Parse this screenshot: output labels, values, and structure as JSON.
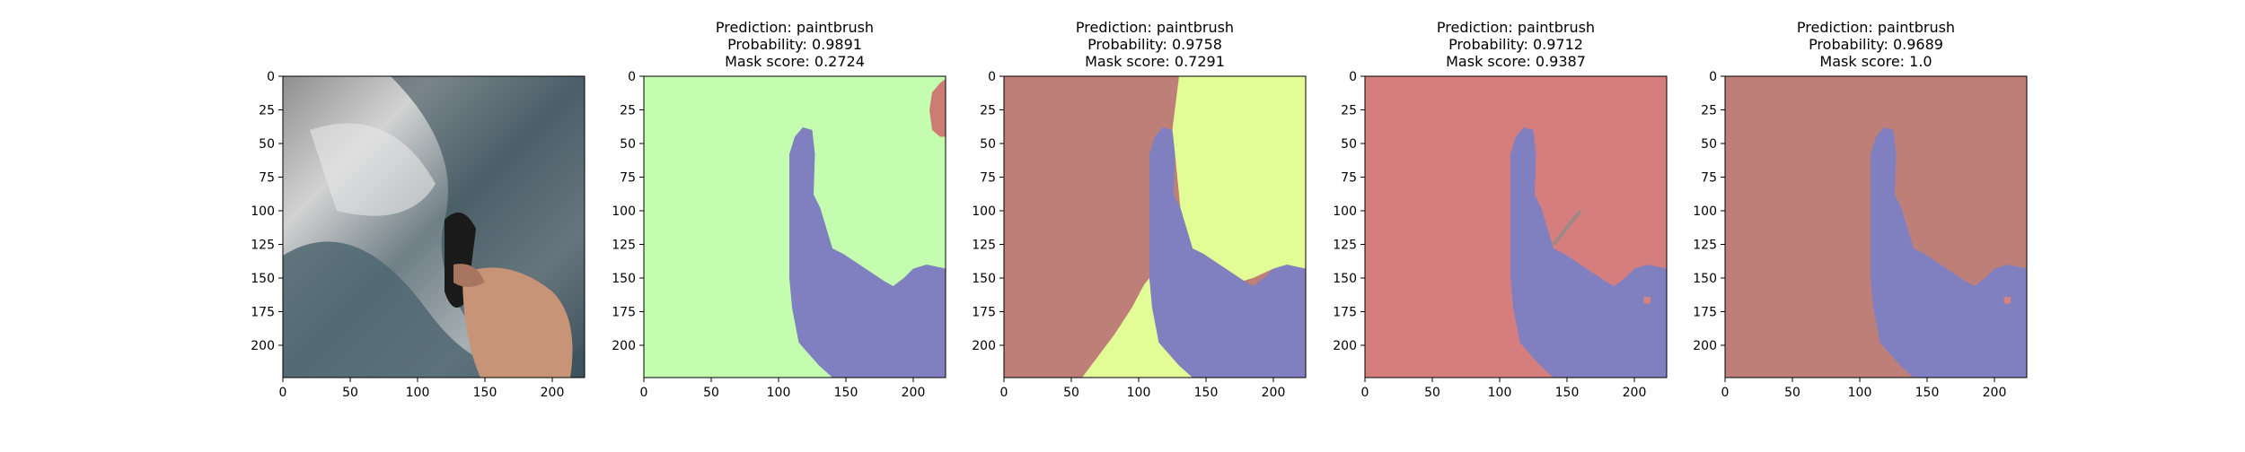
{
  "chart_data": [
    {
      "type": "image",
      "image": "photo",
      "title_lines": [],
      "xticks": [
        0,
        50,
        100,
        150,
        200
      ],
      "yticks": [
        0,
        25,
        50,
        75,
        100,
        125,
        150,
        175,
        200
      ],
      "xlim": [
        0,
        224
      ],
      "ylim": [
        224,
        0
      ]
    },
    {
      "type": "image",
      "image": "mask",
      "title_lines": [
        "Prediction: paintbrush",
        "Probability: 0.9891",
        "Mask score: 0.2724"
      ],
      "background_color": "#c4fdb0",
      "xticks": [
        0,
        50,
        100,
        150,
        200
      ],
      "yticks": [
        0,
        25,
        50,
        75,
        100,
        125,
        150,
        175,
        200
      ],
      "xlim": [
        0,
        224
      ],
      "ylim": [
        224,
        0
      ]
    },
    {
      "type": "image",
      "image": "mask",
      "title_lines": [
        "Prediction: paintbrush",
        "Probability: 0.9758",
        "Mask score: 0.7291"
      ],
      "background_color": "#bf7f79",
      "xticks": [
        0,
        50,
        100,
        150,
        200
      ],
      "yticks": [
        0,
        25,
        50,
        75,
        100,
        125,
        150,
        175,
        200
      ],
      "xlim": [
        0,
        224
      ],
      "ylim": [
        224,
        0
      ]
    },
    {
      "type": "image",
      "image": "mask",
      "title_lines": [
        "Prediction: paintbrush",
        "Probability: 0.9712",
        "Mask score: 0.9387"
      ],
      "background_color": "#d67e7e",
      "xticks": [
        0,
        50,
        100,
        150,
        200
      ],
      "yticks": [
        0,
        25,
        50,
        75,
        100,
        125,
        150,
        175,
        200
      ],
      "xlim": [
        0,
        224
      ],
      "ylim": [
        224,
        0
      ]
    },
    {
      "type": "image",
      "image": "mask",
      "title_lines": [
        "Prediction: paintbrush",
        "Probability: 0.9689",
        "Mask score: 1.0"
      ],
      "background_color": "#bf7f79",
      "xticks": [
        0,
        50,
        100,
        150,
        200
      ],
      "yticks": [
        0,
        25,
        50,
        75,
        100,
        125,
        150,
        175,
        200
      ],
      "xlim": [
        0,
        224
      ],
      "ylim": [
        224,
        0
      ]
    }
  ],
  "colors": {
    "purple_region": "#8080c0",
    "red_region": "#cc7c72",
    "yellow_region": "#e2fd95",
    "small_spot": "#d98080"
  }
}
